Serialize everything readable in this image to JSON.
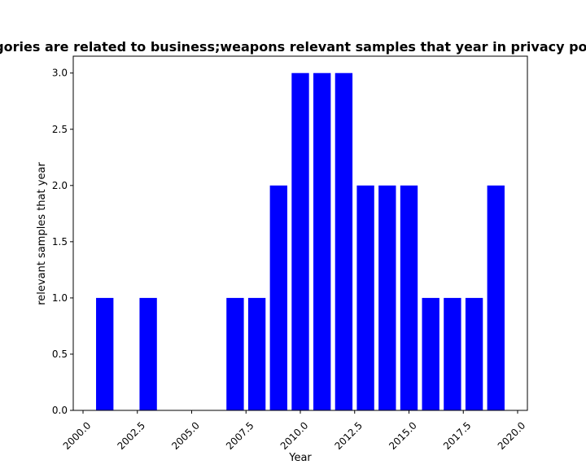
{
  "chart_data": {
    "type": "bar",
    "title": "Categories are related to business;weapons relevant samples that year in privacy policies",
    "xlabel": "Year",
    "ylabel": "relevant samples that year",
    "x": [
      2001,
      2003,
      2007,
      2008,
      2009,
      2010,
      2011,
      2012,
      2013,
      2014,
      2015,
      2016,
      2017,
      2018,
      2019
    ],
    "values": [
      1,
      1,
      1,
      1,
      2,
      3,
      3,
      3,
      2,
      2,
      2,
      1,
      1,
      1,
      2
    ],
    "xlim": [
      1999.55,
      2020.45
    ],
    "ylim": [
      0,
      3.15
    ],
    "xticks": [
      "2000.0",
      "2002.5",
      "2005.0",
      "2007.5",
      "2010.0",
      "2012.5",
      "2015.0",
      "2017.5",
      "2020.0"
    ],
    "yticks": [
      "0.0",
      "0.5",
      "1.0",
      "1.5",
      "2.0",
      "2.5",
      "3.0"
    ],
    "bar_color": "#0000ff",
    "grid": false,
    "legend": "none"
  }
}
